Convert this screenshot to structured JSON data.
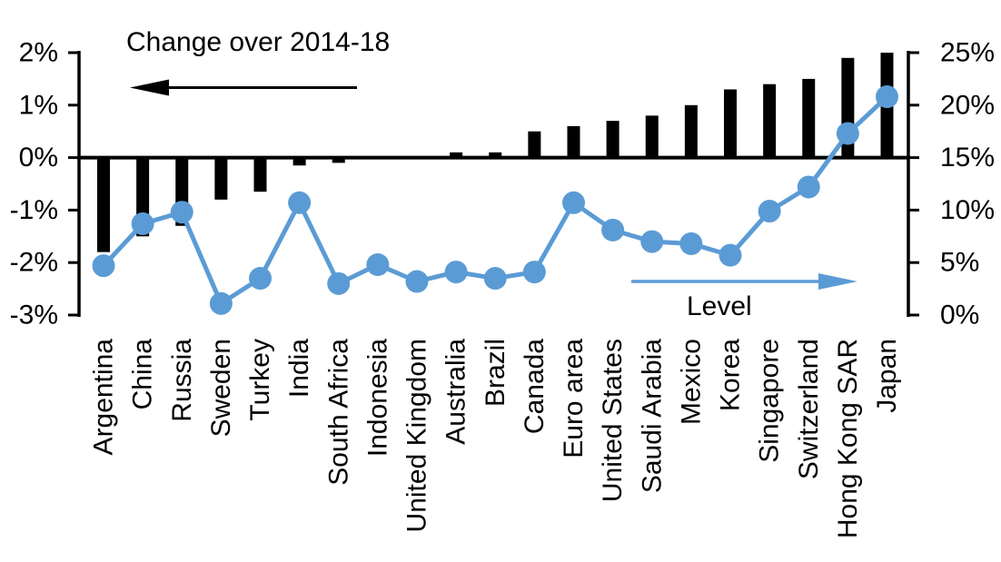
{
  "chart_data": {
    "type": "combo-bar-line-dual-axis",
    "title": "",
    "categories": [
      "Argentina",
      "China",
      "Russia",
      "Sweden",
      "Turkey",
      "India",
      "South Africa",
      "Indonesia",
      "United Kingdom",
      "Australia",
      "Brazil",
      "Canada",
      "Euro area",
      "United States",
      "Saudi Arabia",
      "Mexico",
      "Korea",
      "Singapore",
      "Switzerland",
      "Hong Kong SAR",
      "Japan"
    ],
    "series": [
      {
        "name": "Change over 2014-18",
        "type": "bar",
        "axis": "left",
        "color": "#000000",
        "values": [
          -1.8,
          -1.5,
          -1.3,
          -0.8,
          -0.65,
          -0.15,
          -0.1,
          0,
          0,
          0.1,
          0.1,
          0.5,
          0.6,
          0.7,
          0.8,
          1.0,
          1.3,
          1.4,
          1.5,
          1.9,
          2.0
        ]
      },
      {
        "name": "Level",
        "type": "line",
        "axis": "right",
        "color": "#5B9BD5",
        "values": [
          4.7,
          8.7,
          9.8,
          1.1,
          3.5,
          10.7,
          3.0,
          4.8,
          3.2,
          4.1,
          3.5,
          4.1,
          10.7,
          8.1,
          7.0,
          6.8,
          5.7,
          9.9,
          12.2,
          17.3,
          20.8
        ]
      }
    ],
    "left_axis": {
      "min": -3,
      "max": 2,
      "tick_values": [
        2,
        1,
        0,
        -1,
        -2,
        -3
      ],
      "tick_labels": [
        "2%",
        "1%",
        "0%",
        "-1%",
        "-2%",
        "-3%"
      ]
    },
    "right_axis": {
      "min": 0,
      "max": 25,
      "tick_values": [
        25,
        20,
        15,
        10,
        5,
        0
      ],
      "tick_labels": [
        "25%",
        "20%",
        "15%",
        "10%",
        "5%",
        "0%"
      ]
    },
    "annotations": {
      "change": {
        "text": "Change over 2014-18",
        "arrow_direction": "left",
        "color": "#000000"
      },
      "level": {
        "text": "Level",
        "arrow_direction": "right",
        "color": "#5B9BD5"
      }
    },
    "grid": false,
    "legend_position": "none",
    "background": "#FFFFFF"
  }
}
